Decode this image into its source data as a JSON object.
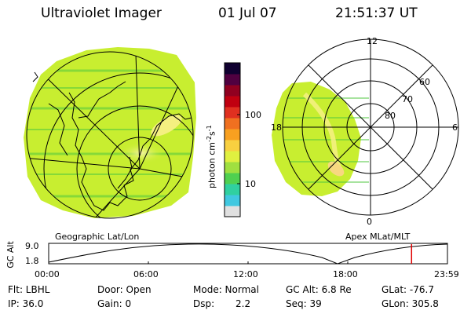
{
  "header": {
    "title": "Ultraviolet Imager",
    "date": "01 Jul 07",
    "time": "21:51:37 UT"
  },
  "colorbar": {
    "label": "photon cm",
    "label_sup1": "-2",
    "label_mid": "s",
    "label_sup2": "-1",
    "tick_high": "100",
    "tick_low": "10",
    "colors": [
      "#e0e0e0",
      "#40c8e0",
      "#30d0a0",
      "#50d050",
      "#a0e040",
      "#e0f040",
      "#f8d040",
      "#f8a020",
      "#f07020",
      "#e03020",
      "#c00010",
      "#900020",
      "#500040",
      "#100030"
    ]
  },
  "left_map": {
    "caption": "Geographic Lat/Lon",
    "fill_color": "#c8ee30",
    "highlight_color": "#f4f080"
  },
  "right_map": {
    "caption": "Apex MLat/MLT",
    "label_12": "12",
    "label_18": "18",
    "label_6": "6",
    "label_0": "0",
    "ring_60": "60",
    "ring_70": "70",
    "ring_80": "80"
  },
  "timeline": {
    "axis_label": "GC Alt",
    "y_top": "9.0",
    "y_bottom": "1.8",
    "ticks": [
      "00:00",
      "06:00",
      "12:00",
      "18:00",
      "23:59"
    ],
    "marker_color": "#e00000",
    "current_time_fraction": 0.91
  },
  "info": {
    "flt": "Flt: LBHL",
    "door": "Door: Open",
    "mode": "Mode: Normal",
    "gc_alt": "GC Alt: 6.8 Re",
    "glat": "GLat: -76.7",
    "ip": "IP: 36.0",
    "gain": "Gain:  0",
    "dsp_label": "Dsp:",
    "dsp_value": "2.2",
    "seq": "Seq: 39",
    "glon": "GLon: 305.8"
  }
}
